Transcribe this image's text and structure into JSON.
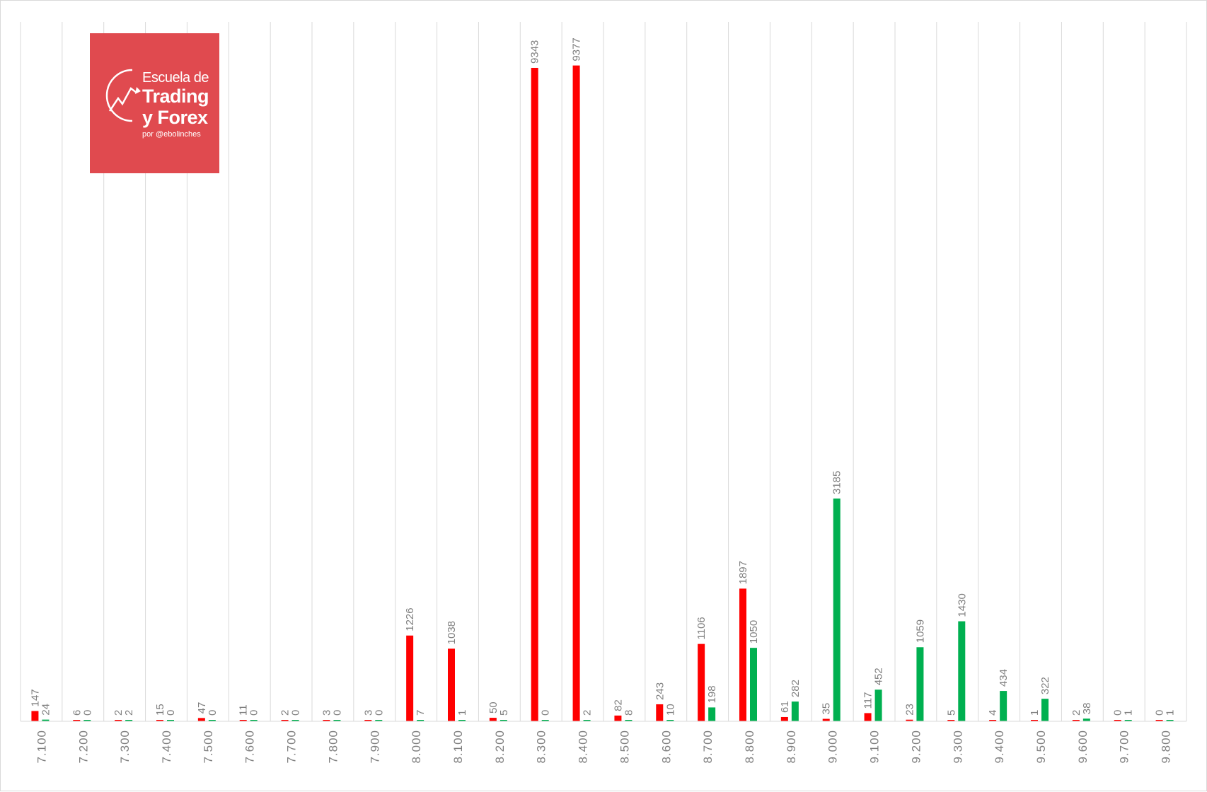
{
  "colors": {
    "series_a": "#ff0000",
    "series_b": "#00b050",
    "gridline": "#d9d9d9",
    "label": "#7f7f7f"
  },
  "logo": {
    "line1": "Escuela de",
    "line2": "Trading",
    "line3": "y Forex",
    "line4": "por @ebolinches",
    "background": "#e04a4f"
  },
  "chart_data": {
    "type": "bar",
    "title": "",
    "xlabel": "",
    "ylabel": "",
    "categories": [
      "7.100",
      "7.200",
      "7.300",
      "7.400",
      "7.500",
      "7.600",
      "7.700",
      "7.800",
      "7.900",
      "8.000",
      "8.100",
      "8.200",
      "8.300",
      "8.400",
      "8.500",
      "8.600",
      "8.700",
      "8.800",
      "8.900",
      "9.000",
      "9.100",
      "9.200",
      "9.300",
      "9.400",
      "9.500",
      "9.600",
      "9.700",
      "9.800"
    ],
    "series": [
      {
        "color": "#ff0000",
        "values": [
          147,
          6,
          2,
          15,
          47,
          11,
          2,
          3,
          3,
          1226,
          1038,
          50,
          9343,
          9377,
          82,
          243,
          1106,
          1897,
          61,
          35,
          117,
          23,
          5,
          4,
          1,
          2,
          0,
          0
        ]
      },
      {
        "color": "#00b050",
        "values": [
          24,
          0,
          2,
          0,
          0,
          0,
          0,
          0,
          0,
          7,
          1,
          5,
          0,
          2,
          8,
          10,
          198,
          1050,
          282,
          3185,
          452,
          1059,
          1430,
          434,
          322,
          38,
          1,
          1
        ]
      }
    ],
    "ylim": [
      0,
      10000
    ],
    "grid": "vertical",
    "legend": "none",
    "data_labels": true,
    "tick_label_rotation": -90
  }
}
